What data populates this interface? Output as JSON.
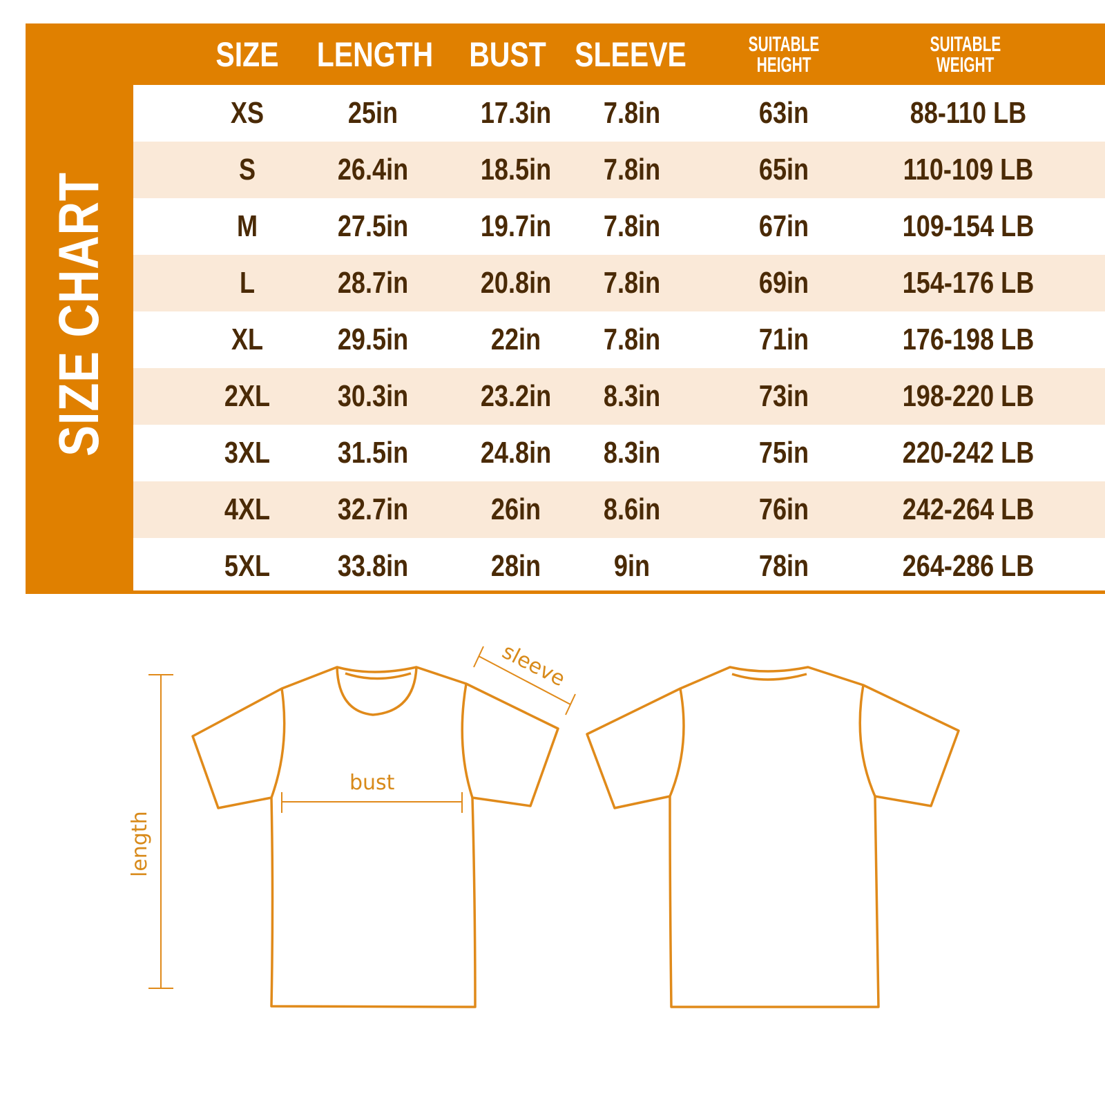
{
  "title": "SIZE CHART",
  "colors": {
    "accent": "#e08000",
    "row_alt": "#fae9d8",
    "text": "#4a2a06",
    "diagram": "#e08a1a"
  },
  "headers": [
    "SIZE",
    "LENGTH",
    "BUST",
    "SLEEVE",
    "SUITABLE HEIGHT",
    "SUITABLE WEIGHT"
  ],
  "header_lines": {
    "height": [
      "SUITABLE",
      "HEIGHT"
    ],
    "weight": [
      "SUITABLE",
      "WEIGHT"
    ]
  },
  "chart_data": {
    "type": "table",
    "columns": [
      "SIZE",
      "LENGTH",
      "BUST",
      "SLEEVE",
      "SUITABLE HEIGHT",
      "SUITABLE WEIGHT"
    ],
    "rows": [
      [
        "XS",
        "25in",
        "17.3in",
        "7.8in",
        "63in",
        "88-110 LB"
      ],
      [
        "S",
        "26.4in",
        "18.5in",
        "7.8in",
        "65in",
        "110-109 LB"
      ],
      [
        "M",
        "27.5in",
        "19.7in",
        "7.8in",
        "67in",
        "109-154 LB"
      ],
      [
        "L",
        "28.7in",
        "20.8in",
        "7.8in",
        "69in",
        "154-176 LB"
      ],
      [
        "XL",
        "29.5in",
        "22in",
        "7.8in",
        "71in",
        "176-198 LB"
      ],
      [
        "2XL",
        "30.3in",
        "23.2in",
        "8.3in",
        "73in",
        "198-220 LB"
      ],
      [
        "3XL",
        "31.5in",
        "24.8in",
        "8.3in",
        "75in",
        "220-242 LB"
      ],
      [
        "4XL",
        "32.7in",
        "26in",
        "8.6in",
        "76in",
        "242-264 LB"
      ],
      [
        "5XL",
        "33.8in",
        "28in",
        "9in",
        "78in",
        "264-286 LB"
      ]
    ]
  },
  "diagram": {
    "sleeve_label": "sleeve",
    "bust_label": "bust",
    "length_label": "length"
  }
}
